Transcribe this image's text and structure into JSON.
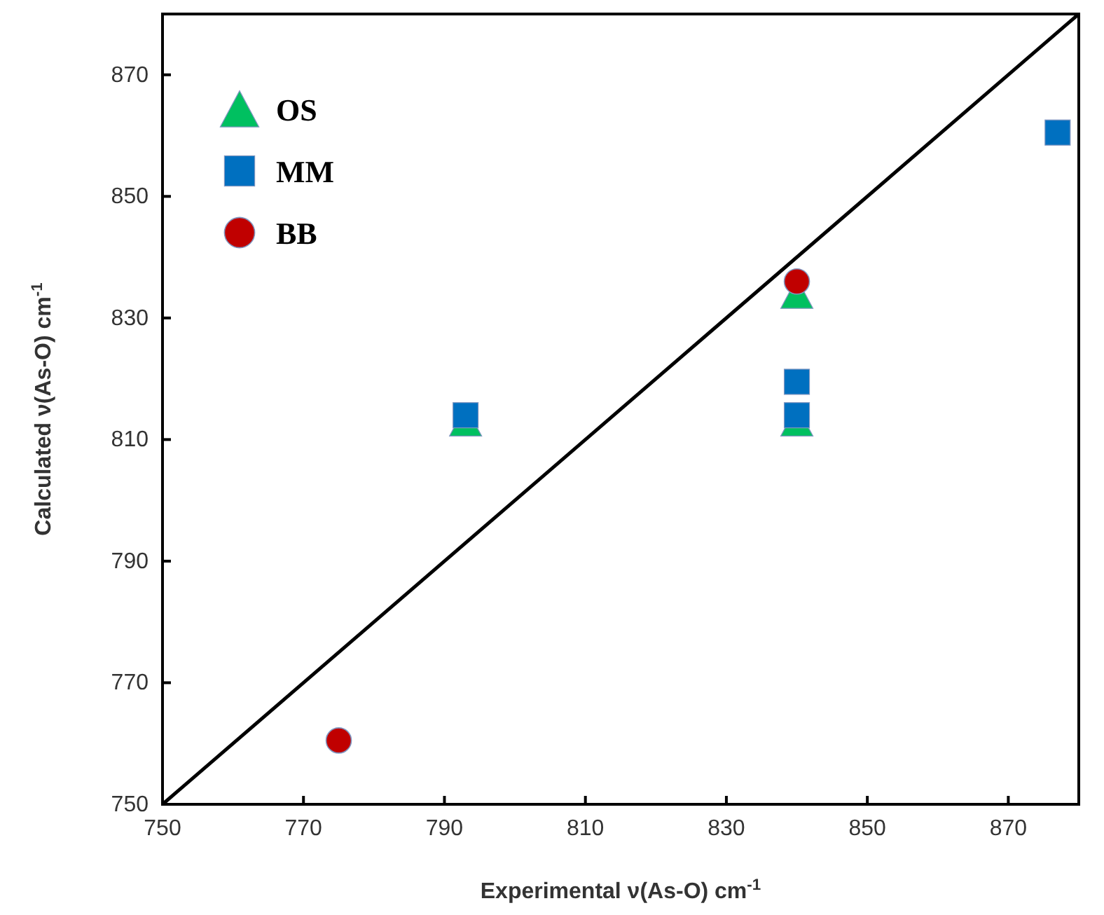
{
  "chart_data": {
    "type": "scatter",
    "xlabel": "Experimental ν(As-O) cm$^{-1}$",
    "ylabel": "Calculated ν(As-O) cm$^{-1}$",
    "xlim": [
      750,
      880
    ],
    "ylim": [
      750,
      880
    ],
    "xticks": [
      750,
      770,
      790,
      810,
      830,
      850,
      870
    ],
    "yticks": [
      750,
      770,
      790,
      810,
      830,
      850,
      870
    ],
    "grid": false,
    "legend": "top left",
    "series": [
      {
        "name": "OS",
        "color": "#00c060",
        "marker": "triangle",
        "x": [
          793,
          840,
          840
        ],
        "values": [
          813,
          834,
          813
        ]
      },
      {
        "name": "MM",
        "color": "#0070c0",
        "marker": "square",
        "x": [
          793,
          840,
          840,
          877
        ],
        "values": [
          814,
          819.5,
          814,
          860.5
        ]
      },
      {
        "name": "BB",
        "color": "#c00000",
        "marker": "circle",
        "x": [
          775,
          840
        ],
        "values": [
          760.5,
          836
        ]
      },
      {
        "type": "line",
        "color": "#000000",
        "marker": "none",
        "x": [
          750,
          880
        ],
        "values": [
          750,
          880
        ]
      }
    ]
  }
}
